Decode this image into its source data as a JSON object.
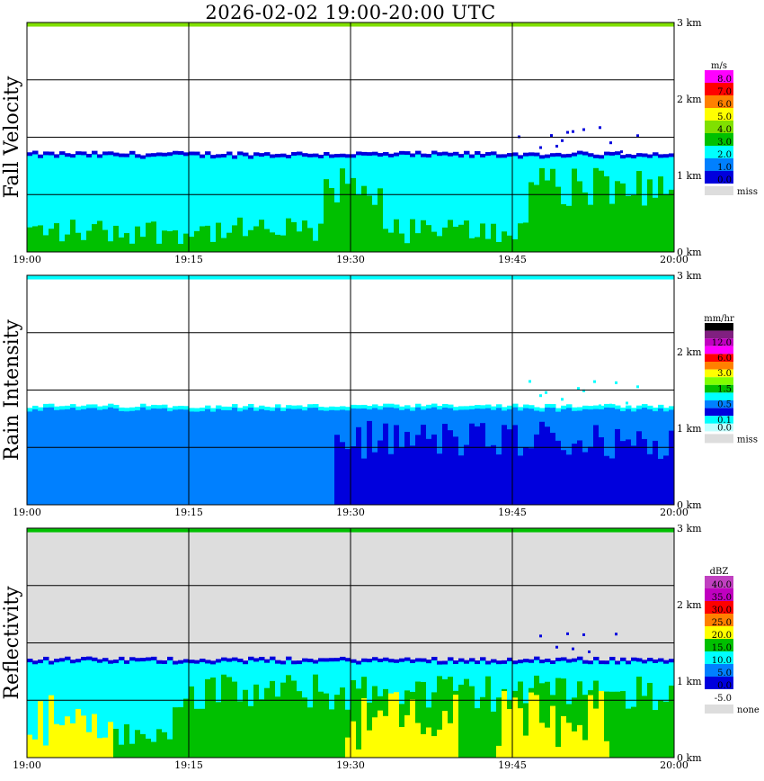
{
  "title": "2026-02-02   19:00-20:00 UTC",
  "chart_data": [
    {
      "type": "heatmap",
      "title": "Fall Velocity",
      "x_ticks": [
        "19:00",
        "19:15",
        "19:30",
        "19:45",
        "20:00"
      ],
      "y_ticks": [
        "0 km",
        "1 km",
        "2 km",
        "3 km"
      ],
      "xlim": [
        0,
        60
      ],
      "ylim": [
        0,
        3
      ],
      "grid": true,
      "background": "#ffffff",
      "colorbar": {
        "unit": "m/s",
        "entries": [
          {
            "label": "8.0",
            "color": "#ff00ff"
          },
          {
            "label": "7.0",
            "color": "#ff0000"
          },
          {
            "label": "6.0",
            "color": "#ff8000"
          },
          {
            "label": "5.0",
            "color": "#ffff00"
          },
          {
            "label": "4.0",
            "color": "#80e000"
          },
          {
            "label": "3.0",
            "color": "#00c000"
          },
          {
            "label": "2.0",
            "color": "#00ffff"
          },
          {
            "label": "1.0",
            "color": "#0080ff"
          },
          {
            "label": "0.0",
            "color": "#0000dd"
          },
          {
            "label": "miss",
            "color": "#dddddd"
          }
        ]
      }
    },
    {
      "type": "heatmap",
      "title": "Rain Intensity",
      "x_ticks": [
        "19:00",
        "19:15",
        "19:30",
        "19:45",
        "20:00"
      ],
      "y_ticks": [
        "0 km",
        "1 km",
        "2 km",
        "3 km"
      ],
      "xlim": [
        0,
        60
      ],
      "ylim": [
        0,
        3
      ],
      "grid": true,
      "background": "#ffffff",
      "colorbar": {
        "unit": "mm/hr",
        "entries": [
          {
            "label": "48.0",
            "color": "#000000"
          },
          {
            "label": "",
            "color": "#802080"
          },
          {
            "label": "12.0",
            "color": "#c000c0"
          },
          {
            "label": "",
            "color": "#ff00ff"
          },
          {
            "label": "6.0",
            "color": "#ff0000"
          },
          {
            "label": "",
            "color": "#ff8000"
          },
          {
            "label": "3.0",
            "color": "#ffff00"
          },
          {
            "label": "",
            "color": "#80ff00"
          },
          {
            "label": "1.5",
            "color": "#00c000"
          },
          {
            "label": "",
            "color": "#00ffff"
          },
          {
            "label": "0.5",
            "color": "#0080ff"
          },
          {
            "label": "",
            "color": "#0000dd"
          },
          {
            "label": "0.1",
            "color": "#00ffff"
          },
          {
            "label": "0.0",
            "color": "#c0ffff"
          },
          {
            "label": "miss",
            "color": "#dddddd"
          }
        ]
      }
    },
    {
      "type": "heatmap",
      "title": "Reflectivity",
      "x_ticks": [
        "19:00",
        "19:15",
        "19:30",
        "19:45",
        "20:00"
      ],
      "y_ticks": [
        "0 km",
        "1 km",
        "2 km",
        "3 km"
      ],
      "xlim": [
        0,
        60
      ],
      "ylim": [
        0,
        3
      ],
      "grid": true,
      "background": "#dddddd",
      "colorbar": {
        "unit": "dBZ",
        "entries": [
          {
            "label": "40.0",
            "color": "#c040c0"
          },
          {
            "label": "35.0",
            "color": "#c000c0"
          },
          {
            "label": "30.0",
            "color": "#ff0000"
          },
          {
            "label": "25.0",
            "color": "#ff8000"
          },
          {
            "label": "20.0",
            "color": "#ffff00"
          },
          {
            "label": "15.0",
            "color": "#00c000"
          },
          {
            "label": "10.0",
            "color": "#00ffff"
          },
          {
            "label": "5.0",
            "color": "#0080ff"
          },
          {
            "label": "0.0",
            "color": "#0000dd"
          },
          {
            "label": "-5.0",
            "color": "#ffffff"
          },
          {
            "label": "none",
            "color": "#dddddd"
          }
        ]
      }
    }
  ]
}
